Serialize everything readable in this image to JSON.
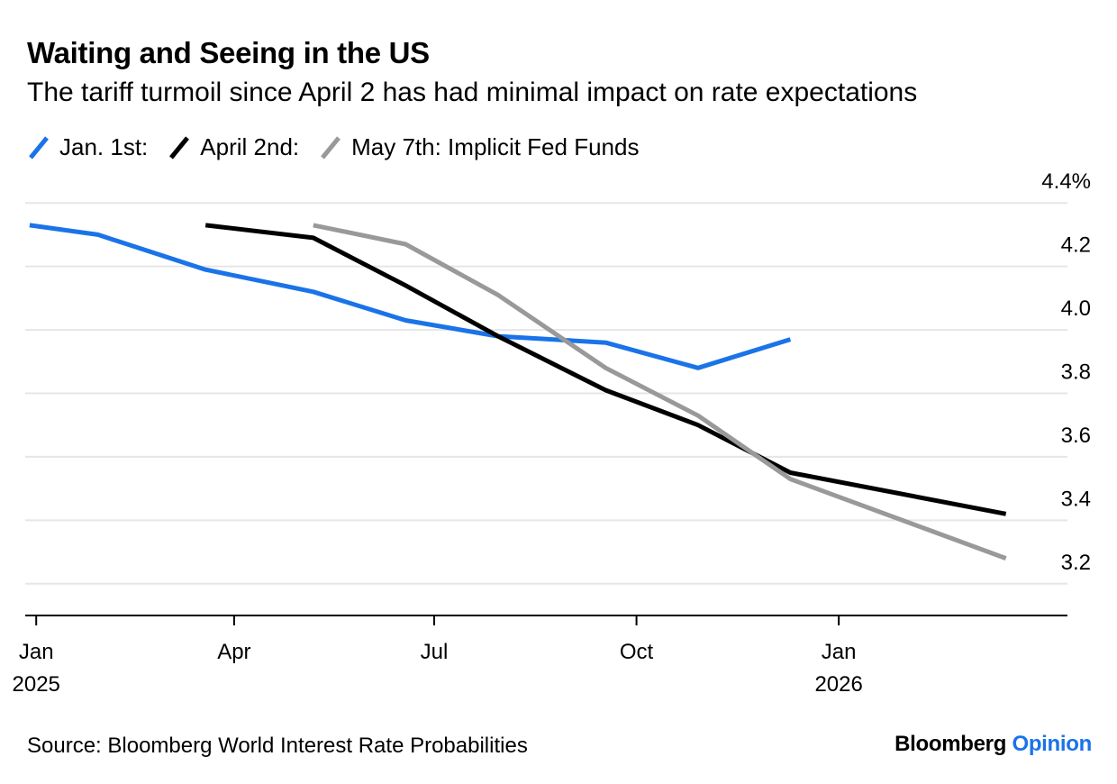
{
  "header": {
    "title": "Waiting and Seeing in the US",
    "subtitle": "The tariff turmoil since April 2 has had minimal impact on rate expectations"
  },
  "footer": {
    "source": "Source: Bloomberg World Interest Rate Probabilities",
    "brand_name": "Bloomberg",
    "brand_section": "Opinion"
  },
  "chart_data": {
    "type": "line",
    "title": "Waiting and Seeing in the US",
    "subtitle": "The tariff turmoil since April 2 has had minimal impact on rate expectations",
    "x_axis": {
      "type": "time",
      "range": [
        "2024-12-27",
        "2026-04-15"
      ],
      "ticks": [
        {
          "date": "2025-01-01",
          "label": "Jan",
          "sublabel": "2025"
        },
        {
          "date": "2025-04-01",
          "label": "Apr",
          "sublabel": ""
        },
        {
          "date": "2025-07-01",
          "label": "Jul",
          "sublabel": ""
        },
        {
          "date": "2025-10-01",
          "label": "Oct",
          "sublabel": ""
        },
        {
          "date": "2026-01-01",
          "label": "Jan",
          "sublabel": "2026"
        }
      ]
    },
    "y_axis": {
      "range": [
        3.1,
        4.5
      ],
      "position": "right",
      "ticks": [
        {
          "value": 3.2,
          "label": "3.2"
        },
        {
          "value": 3.4,
          "label": "3.4"
        },
        {
          "value": 3.6,
          "label": "3.6"
        },
        {
          "value": 3.8,
          "label": "3.8"
        },
        {
          "value": 4.0,
          "label": "4.0"
        },
        {
          "value": 4.2,
          "label": "4.2"
        },
        {
          "value": 4.4,
          "label": "4.4%"
        }
      ]
    },
    "grid": true,
    "legend_position": "top-left",
    "series": [
      {
        "name": "Jan. 1st:",
        "color": "#1a73e8",
        "points": [
          {
            "x": "2024-12-29",
            "y": 4.33
          },
          {
            "x": "2025-01-29",
            "y": 4.3
          },
          {
            "x": "2025-03-19",
            "y": 4.19
          },
          {
            "x": "2025-05-07",
            "y": 4.12
          },
          {
            "x": "2025-06-18",
            "y": 4.03
          },
          {
            "x": "2025-07-30",
            "y": 3.98
          },
          {
            "x": "2025-09-17",
            "y": 3.96
          },
          {
            "x": "2025-10-29",
            "y": 3.88
          },
          {
            "x": "2025-12-10",
            "y": 3.97
          }
        ]
      },
      {
        "name": "April 2nd:",
        "color": "#000000",
        "points": [
          {
            "x": "2025-03-19",
            "y": 4.33
          },
          {
            "x": "2025-05-07",
            "y": 4.29
          },
          {
            "x": "2025-06-18",
            "y": 4.14
          },
          {
            "x": "2025-07-30",
            "y": 3.98
          },
          {
            "x": "2025-09-17",
            "y": 3.81
          },
          {
            "x": "2025-10-29",
            "y": 3.7
          },
          {
            "x": "2025-12-10",
            "y": 3.55
          },
          {
            "x": "2026-03-18",
            "y": 3.42
          }
        ]
      },
      {
        "name": "May 7th: Implicit Fed Funds",
        "color": "#999999",
        "points": [
          {
            "x": "2025-05-07",
            "y": 4.33
          },
          {
            "x": "2025-06-18",
            "y": 4.27
          },
          {
            "x": "2025-07-30",
            "y": 4.11
          },
          {
            "x": "2025-09-17",
            "y": 3.88
          },
          {
            "x": "2025-10-29",
            "y": 3.73
          },
          {
            "x": "2025-12-10",
            "y": 3.53
          },
          {
            "x": "2026-03-18",
            "y": 3.28
          }
        ]
      }
    ]
  }
}
